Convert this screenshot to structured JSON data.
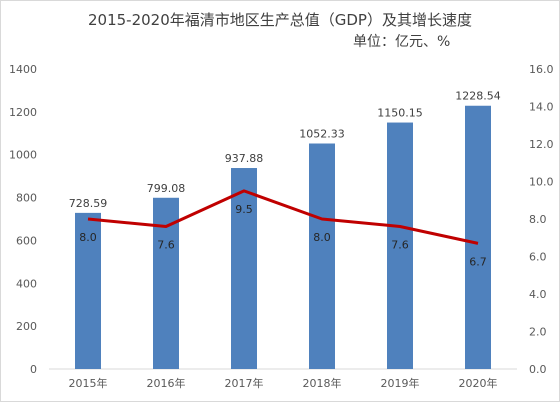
{
  "chart_data": {
    "type": "bar+line",
    "title": "2015-2020年福清市地区生产总值（GDP）及其增长速度",
    "subtitle": "单位：亿元、%",
    "categories": [
      "2015年",
      "2016年",
      "2017年",
      "2018年",
      "2019年",
      "2020年"
    ],
    "series": [
      {
        "type": "bar",
        "axis": "left",
        "values": [
          728.59,
          799.08,
          937.88,
          1052.33,
          1150.15,
          1228.54
        ],
        "value_labels": [
          "728.59",
          "799.08",
          "937.88",
          "1052.33",
          "1150.15",
          "1228.54"
        ],
        "color": "#4f81bd"
      },
      {
        "type": "line",
        "axis": "right",
        "values": [
          8.0,
          7.6,
          9.5,
          8.0,
          7.6,
          6.7
        ],
        "value_labels": [
          "8.0",
          "7.6",
          "9.5",
          "8.0",
          "7.6",
          "6.7"
        ],
        "color": "#c00000"
      }
    ],
    "y_left": {
      "min": 0,
      "max": 1400,
      "step": 200,
      "ticks": [
        "0",
        "200",
        "400",
        "600",
        "800",
        "1000",
        "1200",
        "1400"
      ]
    },
    "y_right": {
      "min": 0,
      "max": 16,
      "step": 2,
      "ticks": [
        "0.0",
        "2.0",
        "4.0",
        "6.0",
        "8.0",
        "10.0",
        "12.0",
        "14.0",
        "16.0"
      ]
    },
    "grid": false,
    "legend": "none"
  }
}
